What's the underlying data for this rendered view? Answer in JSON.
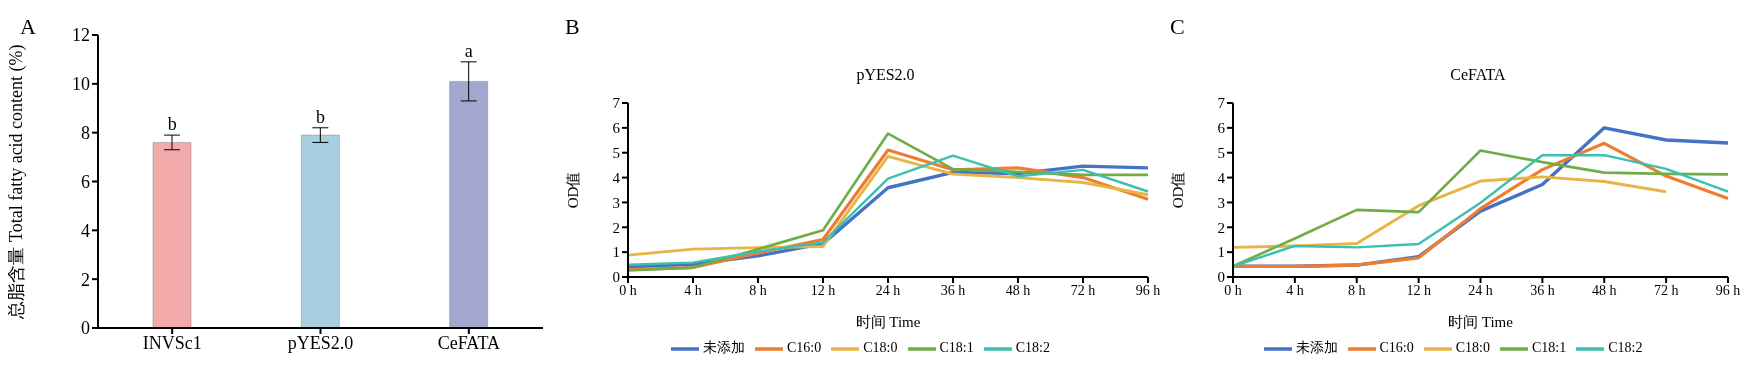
{
  "chart_data": [
    {
      "type": "bar",
      "ylabel": "总脂含量 Total fatty acid content (%)",
      "categories": [
        "INVSc1",
        "pYES2.0",
        "CeFATA"
      ],
      "values": [
        7.6,
        7.9,
        10.1
      ],
      "colors": [
        "#f2a9a9",
        "#a8cfe0",
        "#a2a7cf"
      ],
      "errors": [
        0.3,
        0.3,
        0.8
      ],
      "ylim": [
        0,
        12
      ],
      "yticks": [
        0,
        2,
        4,
        6,
        8,
        10,
        12
      ],
      "grid": false,
      "annotations": [
        "A",
        {
          "text": "b",
          "x": "INVSc1",
          "y": 7.9
        },
        {
          "text": "b",
          "x": "pYES2.0",
          "y": 8.2
        },
        {
          "text": "a",
          "x": "CeFATA",
          "y": 10.9
        }
      ]
    },
    {
      "type": "line",
      "title": "pYES2.0",
      "xlabel": "时间 Time",
      "ylabel": "OD值",
      "categories": [
        "0 h",
        "4 h",
        "8 h",
        "12 h",
        "24 h",
        "36 h",
        "48 h",
        "72 h",
        "96 h"
      ],
      "ylim": [
        0,
        7
      ],
      "yticks": [
        0,
        1,
        2,
        3,
        4,
        5,
        6,
        7
      ],
      "grid": false,
      "legend": "bottom",
      "marker": "none",
      "line_style": "solid",
      "annotations": [
        "B"
      ],
      "series": [
        {
          "name": "未添加",
          "color": "#4472c4",
          "values": [
            0.41,
            0.51,
            0.85,
            1.34,
            3.59,
            4.21,
            4.16,
            4.46,
            4.39
          ]
        },
        {
          "name": "C16:0",
          "color": "#ed7d31",
          "values": [
            0.3,
            0.38,
            0.97,
            1.51,
            5.11,
            4.31,
            4.39,
            4.0,
            3.13
          ]
        },
        {
          "name": "C18:0",
          "color": "#e8b446",
          "values": [
            0.88,
            1.12,
            1.18,
            1.23,
            4.85,
            4.14,
            4.0,
            3.8,
            3.31
          ]
        },
        {
          "name": "C18:1",
          "color": "#70ad47",
          "values": [
            0.26,
            0.38,
            1.12,
            1.88,
            5.77,
            4.34,
            4.23,
            4.11,
            4.11
          ]
        },
        {
          "name": "C18:2",
          "color": "#3cbfb0",
          "values": [
            0.49,
            0.58,
            1.03,
            1.39,
            3.96,
            4.88,
            4.05,
            4.31,
            3.44
          ]
        }
      ]
    },
    {
      "type": "line",
      "title": "CeFATA",
      "xlabel": "时间 Time",
      "ylabel": "OD值",
      "categories": [
        "0 h",
        "4 h",
        "8 h",
        "12 h",
        "24 h",
        "36 h",
        "48 h",
        "72 h",
        "96 h"
      ],
      "ylim": [
        0,
        7
      ],
      "yticks": [
        0,
        1,
        2,
        3,
        4,
        5,
        6,
        7
      ],
      "grid": false,
      "legend": "bottom",
      "marker": "none",
      "line_style": "solid",
      "annotations": [
        "C"
      ],
      "series": [
        {
          "name": "未添加",
          "color": "#4472c4",
          "values": [
            0.43,
            0.43,
            0.48,
            0.82,
            2.65,
            3.72,
            6.0,
            5.51,
            5.39
          ]
        },
        {
          "name": "C16:0",
          "color": "#ed7d31",
          "values": [
            0.43,
            0.43,
            0.48,
            0.77,
            2.75,
            4.32,
            5.38,
            4.06,
            3.16
          ]
        },
        {
          "name": "C18:0",
          "color": "#e8b446",
          "values": [
            1.19,
            1.25,
            1.35,
            2.87,
            3.86,
            4.03,
            3.84,
            3.43,
            null
          ]
        },
        {
          "name": "C18:1",
          "color": "#70ad47",
          "values": [
            0.43,
            1.55,
            2.7,
            2.61,
            5.09,
            4.62,
            4.2,
            4.15,
            4.13
          ]
        },
        {
          "name": "C18:2",
          "color": "#3cbfb0",
          "values": [
            0.43,
            1.25,
            1.19,
            1.33,
            2.99,
            4.9,
            4.9,
            4.35,
            3.43
          ]
        }
      ]
    }
  ]
}
